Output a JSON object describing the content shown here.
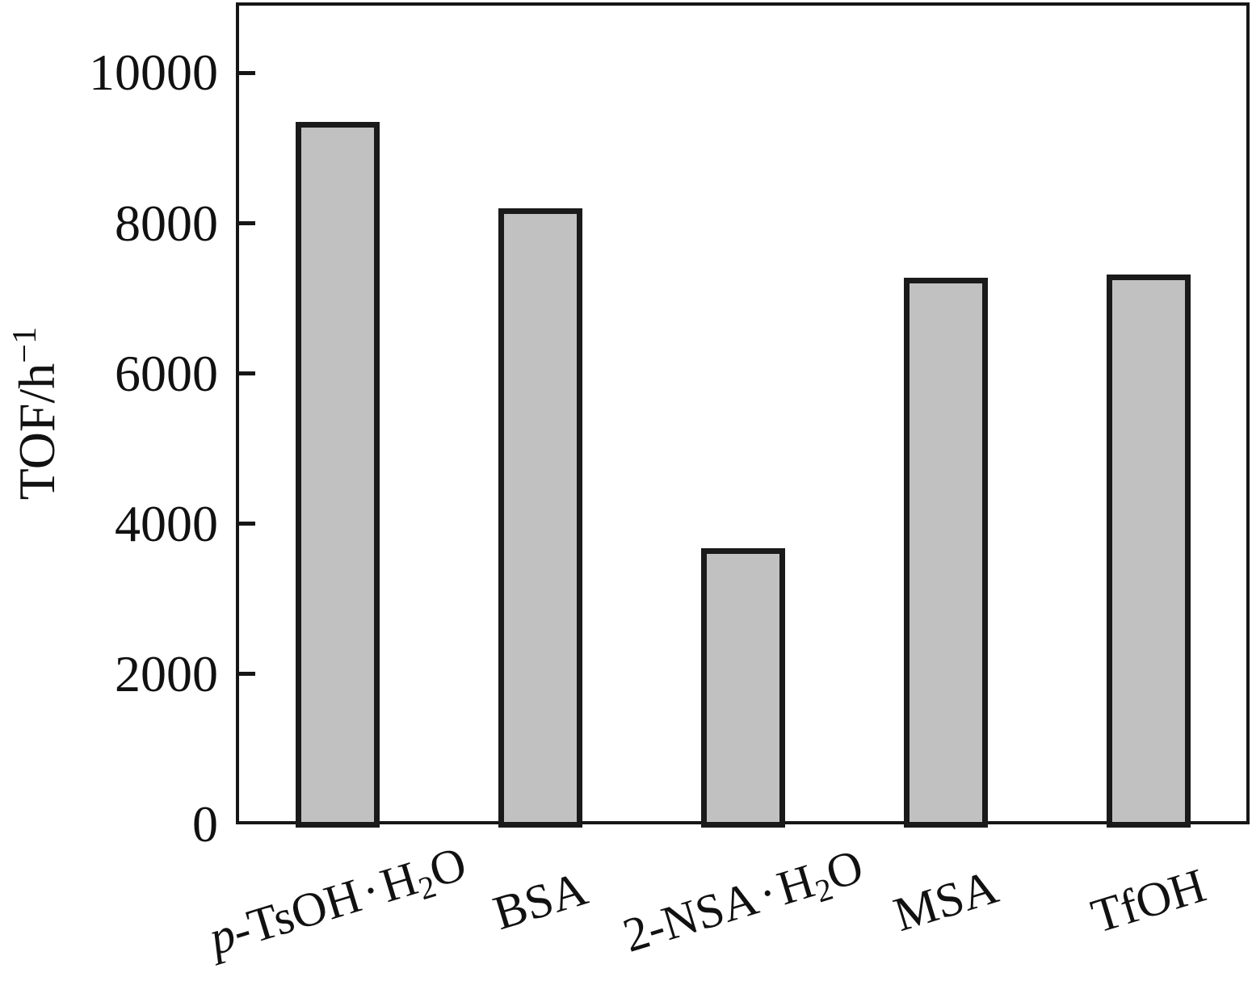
{
  "chart_data": {
    "type": "bar",
    "title": "",
    "xlabel": "",
    "ylabel": "TOF/h⁻¹",
    "categories": [
      "p-TsOH·H₂O",
      "BSA",
      "2-NSA·H₂O",
      "MSA",
      "TfOH"
    ],
    "values": [
      9350,
      8200,
      3670,
      7280,
      7320
    ],
    "yticks": [
      0,
      2000,
      4000,
      6000,
      8000,
      10000
    ],
    "ylim": [
      0,
      10940
    ],
    "grid": false,
    "legend": null,
    "bar_fill_color": "#c1c1c1",
    "bar_edge_color": "#1a1a1a",
    "axis_color": "#161616"
  },
  "rich_text": {
    "ylabel_segments": [
      {
        "t": "TOF/h"
      },
      {
        "t": "−1",
        "sup": true
      }
    ],
    "category_segments": [
      [
        {
          "t": "p",
          "i": true
        },
        {
          "t": "-TsOH"
        },
        {
          "t": "·",
          "dot": true
        },
        {
          "t": "H"
        },
        {
          "t": "2",
          "sub": true
        },
        {
          "t": "O"
        }
      ],
      [
        {
          "t": "BSA"
        }
      ],
      [
        {
          "t": "2-NSA"
        },
        {
          "t": "·",
          "dot": true
        },
        {
          "t": "H"
        },
        {
          "t": "2",
          "sub": true
        },
        {
          "t": "O"
        }
      ],
      [
        {
          "t": "MSA"
        }
      ],
      [
        {
          "t": "TfOH"
        }
      ]
    ]
  }
}
